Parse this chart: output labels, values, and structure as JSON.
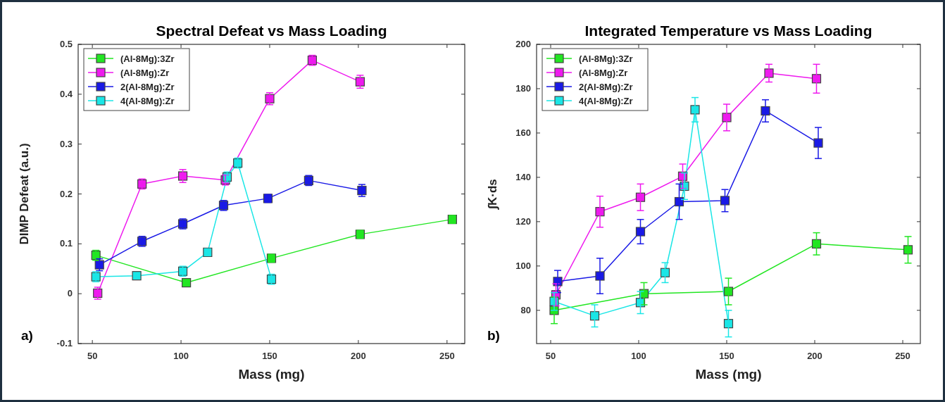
{
  "chart_data": [
    {
      "type": "line",
      "title": "Spectral Defeat vs Mass Loading",
      "xlabel": "Mass (mg)",
      "ylabel": "DIMP Defeat (a.u.)",
      "xlim": [
        42,
        260
      ],
      "xticks": [
        50,
        100,
        150,
        200,
        250
      ],
      "ylim": [
        -0.1,
        0.5
      ],
      "yticks": [
        -0.1,
        0,
        0.1,
        0.2,
        0.3,
        0.4,
        0.5
      ],
      "legend": "top left",
      "marker": "square",
      "annotations": [
        "a)"
      ],
      "series": [
        {
          "name": "(Al-8Mg):3Zr",
          "color": "#22e622",
          "x": [
            52,
            103,
            151,
            201,
            253
          ],
          "values": [
            0.077,
            0.022,
            0.071,
            0.119,
            0.149
          ],
          "errors": [
            0.01,
            0.005,
            0.008,
            0.008,
            0.008
          ]
        },
        {
          "name": "(Al-8Mg):Zr",
          "color": "#ee1aee",
          "x": [
            53,
            78,
            101,
            125,
            150,
            174,
            201
          ],
          "values": [
            0.001,
            0.22,
            0.236,
            0.228,
            0.391,
            0.468,
            0.425
          ],
          "errors": [
            0.012,
            0.01,
            0.013,
            0.01,
            0.012,
            0.01,
            0.013
          ]
        },
        {
          "name": "2(Al-8Mg):Zr",
          "color": "#1a1ae6",
          "x": [
            54,
            78,
            101,
            124,
            149,
            172,
            202
          ],
          "values": [
            0.058,
            0.105,
            0.14,
            0.177,
            0.191,
            0.227,
            0.207
          ],
          "errors": [
            0.012,
            0.01,
            0.01,
            0.01,
            0.008,
            0.01,
            0.012
          ]
        },
        {
          "name": "4(Al-8Mg):Zr",
          "color": "#1ae6e6",
          "x": [
            52,
            75,
            101,
            115,
            126,
            132,
            151
          ],
          "values": [
            0.034,
            0.036,
            0.045,
            0.083,
            0.234,
            0.262,
            0.029
          ],
          "errors": [
            0.01,
            0.005,
            0.01,
            0.007,
            0.01,
            0.01,
            0.01
          ]
        }
      ]
    },
    {
      "type": "line",
      "title": "Integrated Temperature vs Mass Loading",
      "xlabel": "Mass (mg)",
      "ylabel": "∫K·ds",
      "xlim": [
        42,
        260
      ],
      "xticks": [
        50,
        100,
        150,
        200,
        250
      ],
      "ylim": [
        65,
        200
      ],
      "yticks": [
        80,
        100,
        120,
        140,
        160,
        180,
        200
      ],
      "legend": "top left",
      "marker": "square",
      "annotations": [
        "b)"
      ],
      "series": [
        {
          "name": "(Al-8Mg):3Zr",
          "color": "#22e622",
          "x": [
            52,
            103,
            151,
            201,
            253
          ],
          "values": [
            80,
            87.5,
            88.5,
            110,
            107.3
          ],
          "errors": [
            6,
            5,
            6,
            5,
            6
          ]
        },
        {
          "name": "(Al-8Mg):Zr",
          "color": "#ee1aee",
          "x": [
            53,
            78,
            101,
            125,
            150,
            174,
            201
          ],
          "values": [
            87,
            124.5,
            131,
            140.5,
            167,
            187,
            184.5
          ],
          "errors": [
            5,
            7,
            6,
            5.5,
            6,
            4,
            6.5
          ]
        },
        {
          "name": "2(Al-8Mg):Zr",
          "color": "#1a1ae6",
          "x": [
            54,
            78,
            101,
            123,
            149,
            172,
            202
          ],
          "values": [
            93,
            95.5,
            115.5,
            129,
            129.5,
            170,
            155.5
          ],
          "errors": [
            5,
            8,
            5.5,
            8,
            5,
            5,
            7
          ]
        },
        {
          "name": "4(Al-8Mg):Zr",
          "color": "#1ae6e6",
          "x": [
            52,
            75,
            101,
            115,
            126,
            132,
            151
          ],
          "values": [
            84,
            77.5,
            83.5,
            97,
            136,
            170.5,
            74
          ],
          "errors": [
            4,
            5,
            5,
            4.5,
            6,
            5.5,
            6
          ]
        }
      ]
    }
  ]
}
